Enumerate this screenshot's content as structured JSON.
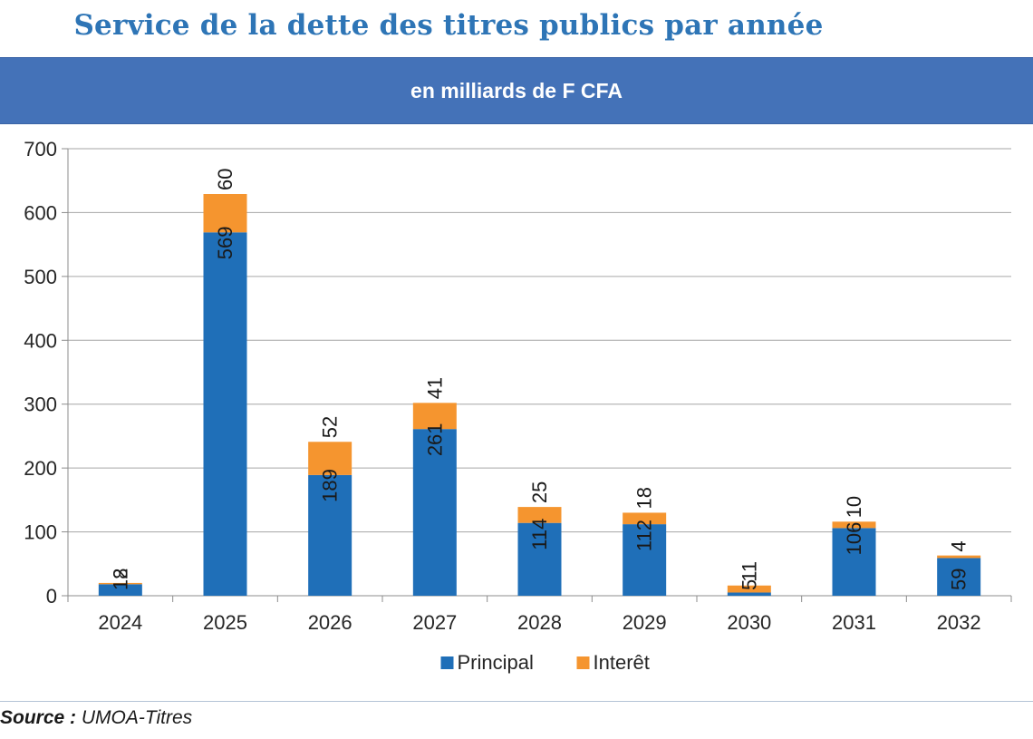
{
  "header": {
    "title": "Service de la dette des titres publics par année",
    "subtitle": "en milliards de F CFA"
  },
  "footer": {
    "source_label": "Source :",
    "source_value": "UMOA-Titres"
  },
  "chart_data": {
    "type": "bar",
    "stacked": true,
    "categories": [
      "2024",
      "2025",
      "2026",
      "2027",
      "2028",
      "2029",
      "2030",
      "2031",
      "2032"
    ],
    "series": [
      {
        "name": "Principal",
        "color": "#1f6fb8",
        "values": [
          18,
          569,
          189,
          261,
          114,
          112,
          5,
          106,
          59
        ]
      },
      {
        "name": "Interêt",
        "color": "#f5952f",
        "values": [
          2,
          60,
          52,
          41,
          25,
          18,
          11,
          10,
          4
        ]
      }
    ],
    "ylim": [
      0,
      700
    ],
    "yticks": [
      0,
      100,
      200,
      300,
      400,
      500,
      600,
      700
    ],
    "grid": true,
    "legend": "bottom-center"
  }
}
